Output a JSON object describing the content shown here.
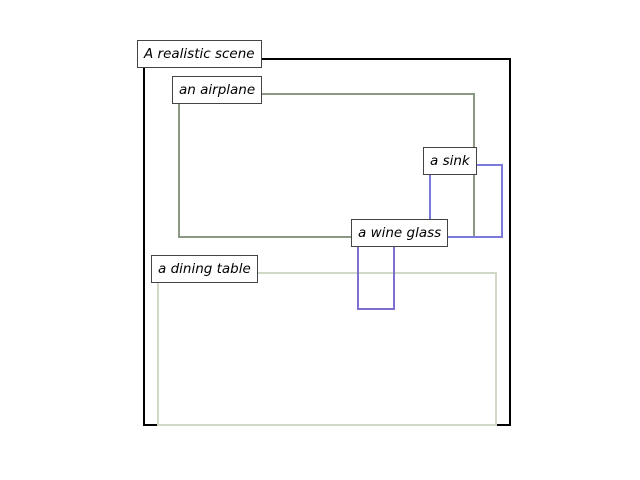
{
  "scene": {
    "label": "A realistic scene",
    "color": "#000000"
  },
  "objects": [
    {
      "id": "airplane",
      "label": "an airplane",
      "color": "#8c9886"
    },
    {
      "id": "sink",
      "label": "a sink",
      "color": "#7b79db"
    },
    {
      "id": "wine-glass",
      "label": "a wine glass",
      "color": "#7b6fd0"
    },
    {
      "id": "dining-table",
      "label": "a dining table",
      "color": "#d0d9c6"
    }
  ]
}
